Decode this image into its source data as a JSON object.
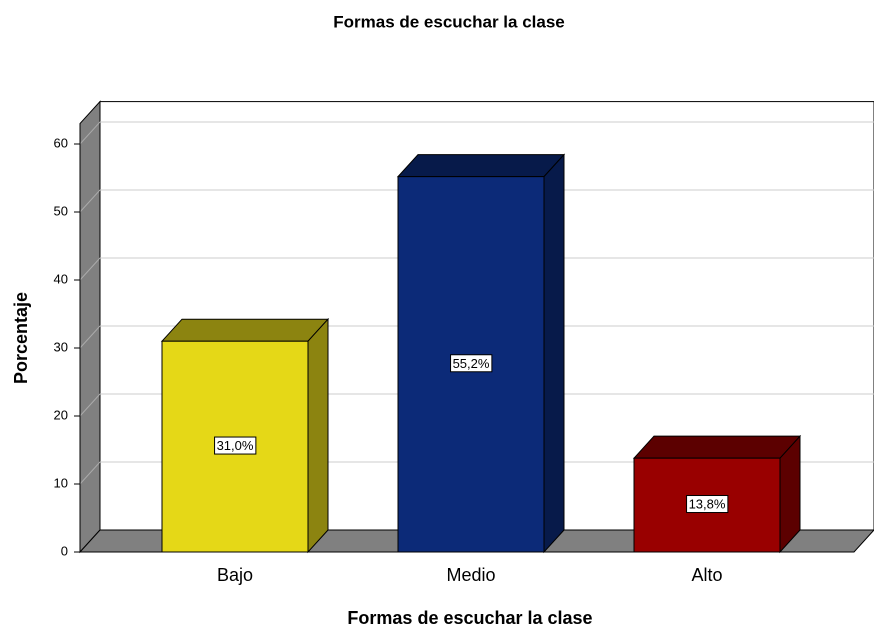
{
  "chart_data": {
    "type": "bar3d",
    "title": "Formas de escuchar la clase",
    "x_label": "Formas de escuchar la clase",
    "y_label": "Porcentaje",
    "categories": [
      "Bajo",
      "Medio",
      "Alto"
    ],
    "values": [
      31.0,
      55.2,
      13.8
    ],
    "value_labels": [
      "31,0%",
      "55,2%",
      "13,8%"
    ],
    "colors": [
      "#e5d817",
      "#0c2a78",
      "#990000"
    ],
    "side_colors": [
      "#8c8410",
      "#071a4a",
      "#5c0000"
    ],
    "ylim": [
      0,
      63
    ],
    "yticks": [
      0,
      10,
      20,
      30,
      40,
      50,
      60
    ],
    "grid": true
  }
}
